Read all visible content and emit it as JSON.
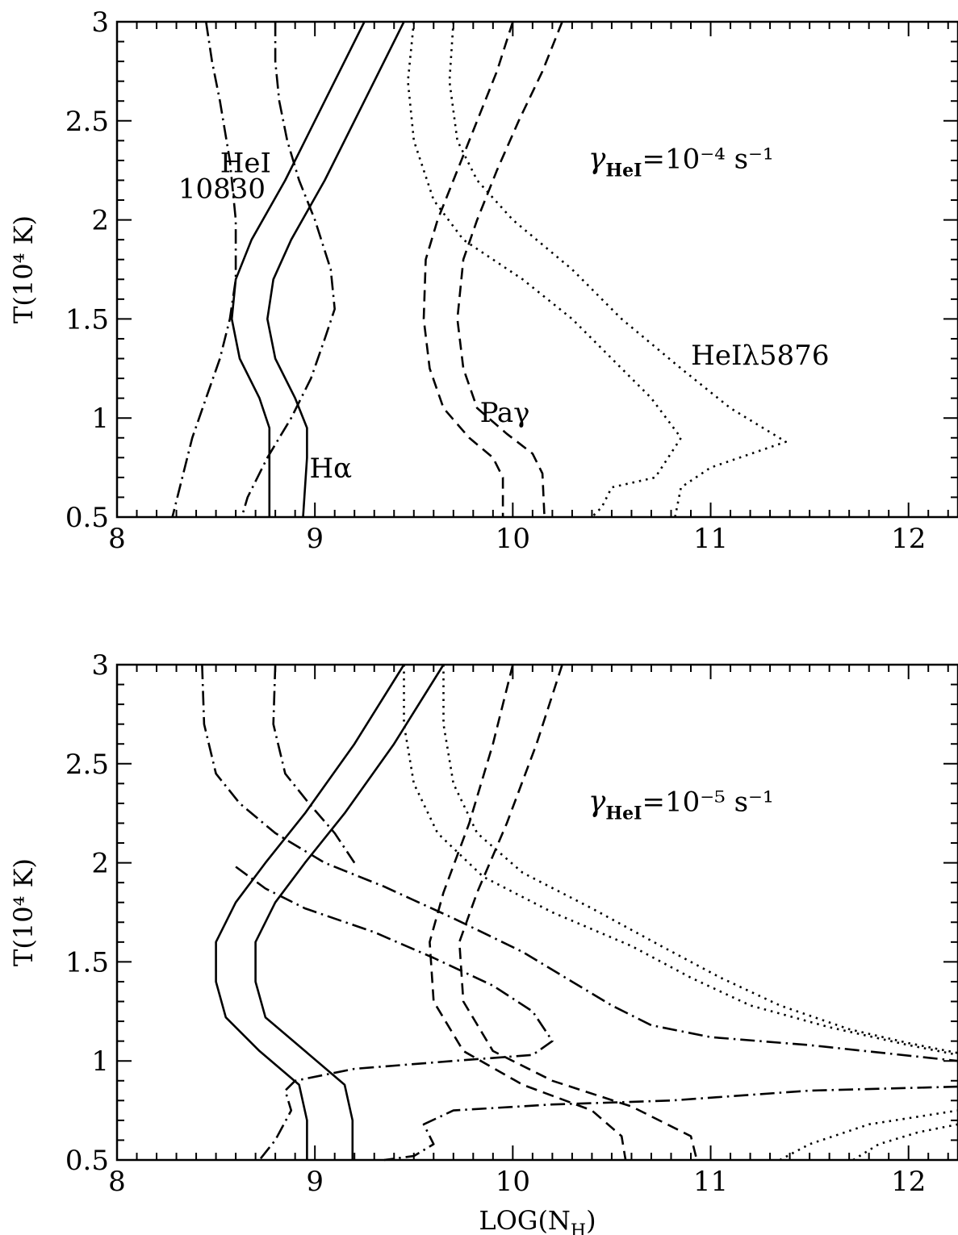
{
  "chart_data": [
    {
      "type": "line",
      "xlabel": "",
      "ylabel": "T(10⁴ K)",
      "xlim": [
        8,
        12.25
      ],
      "ylim": [
        0.5,
        3
      ],
      "x_ticks": [
        "8",
        "9",
        "10",
        "11",
        "12"
      ],
      "y_ticks": [
        "0.5",
        "1",
        "1.5",
        "2",
        "2.5",
        "3"
      ],
      "annotations": [
        {
          "id": "hei10830-a",
          "text": "HeI",
          "x": 8.65,
          "y": 2.24
        },
        {
          "id": "hei10830-b",
          "text": "10830",
          "x": 8.53,
          "y": 2.11
        },
        {
          "id": "halpha",
          "text": "Hα",
          "x": 9.08,
          "y": 0.7
        },
        {
          "id": "pagamma",
          "text": "Paγ",
          "x": 9.96,
          "y": 0.98
        },
        {
          "id": "hei5876",
          "text": "HeIλ5876",
          "x": 11.25,
          "y": 1.27
        },
        {
          "id": "gamma",
          "text": "γHeI=10⁻⁴ s⁻¹",
          "x": 10.85,
          "y": 2.26
        }
      ],
      "series": [
        {
          "style": "dash-dot",
          "points": [
            [
              8.45,
              3
            ],
            [
              8.48,
              2.8
            ],
            [
              8.52,
              2.6
            ],
            [
              8.57,
              2.3
            ],
            [
              8.6,
              2.0
            ],
            [
              8.6,
              1.7
            ],
            [
              8.57,
              1.5
            ],
            [
              8.52,
              1.3
            ],
            [
              8.45,
              1.1
            ],
            [
              8.38,
              0.9
            ],
            [
              8.33,
              0.7
            ],
            [
              8.28,
              0.5
            ]
          ]
        },
        {
          "style": "dash-dot",
          "points": [
            [
              8.8,
              3
            ],
            [
              8.8,
              2.8
            ],
            [
              8.82,
              2.6
            ],
            [
              8.86,
              2.4
            ],
            [
              8.92,
              2.2
            ],
            [
              9.0,
              2.0
            ],
            [
              9.08,
              1.75
            ],
            [
              9.1,
              1.55
            ],
            [
              9.05,
              1.4
            ],
            [
              8.98,
              1.2
            ],
            [
              8.88,
              1.0
            ],
            [
              8.76,
              0.8
            ],
            [
              8.66,
              0.6
            ],
            [
              8.63,
              0.5
            ]
          ]
        },
        {
          "style": "solid",
          "points": [
            [
              9.25,
              3
            ],
            [
              9.05,
              2.6
            ],
            [
              8.85,
              2.2
            ],
            [
              8.68,
              1.9
            ],
            [
              8.6,
              1.7
            ],
            [
              8.58,
              1.5
            ],
            [
              8.62,
              1.3
            ],
            [
              8.72,
              1.1
            ],
            [
              8.77,
              0.95
            ],
            [
              8.77,
              0.8
            ],
            [
              8.77,
              0.5
            ]
          ]
        },
        {
          "style": "solid",
          "points": [
            [
              9.45,
              3
            ],
            [
              9.25,
              2.6
            ],
            [
              9.05,
              2.2
            ],
            [
              8.88,
              1.9
            ],
            [
              8.79,
              1.7
            ],
            [
              8.76,
              1.5
            ],
            [
              8.8,
              1.3
            ],
            [
              8.9,
              1.1
            ],
            [
              8.96,
              0.95
            ],
            [
              8.96,
              0.8
            ],
            [
              8.94,
              0.5
            ]
          ]
        },
        {
          "style": "dotted",
          "points": [
            [
              9.5,
              3
            ],
            [
              9.47,
              2.7
            ],
            [
              9.5,
              2.4
            ],
            [
              9.6,
              2.1
            ],
            [
              9.75,
              1.9
            ],
            [
              10.05,
              1.7
            ],
            [
              10.3,
              1.5
            ],
            [
              10.5,
              1.3
            ],
            [
              10.7,
              1.1
            ],
            [
              10.85,
              0.9
            ],
            [
              10.72,
              0.7
            ],
            [
              10.5,
              0.65
            ],
            [
              10.45,
              0.55
            ],
            [
              10.4,
              0.5
            ]
          ]
        },
        {
          "style": "dotted",
          "points": [
            [
              9.7,
              3
            ],
            [
              9.68,
              2.7
            ],
            [
              9.72,
              2.4
            ],
            [
              9.82,
              2.2
            ],
            [
              10.0,
              2.0
            ],
            [
              10.3,
              1.75
            ],
            [
              10.55,
              1.5
            ],
            [
              10.85,
              1.25
            ],
            [
              11.1,
              1.05
            ],
            [
              11.38,
              0.88
            ],
            [
              11.0,
              0.75
            ],
            [
              10.85,
              0.65
            ],
            [
              10.82,
              0.5
            ]
          ]
        },
        {
          "style": "dashed",
          "points": [
            [
              10.0,
              3
            ],
            [
              9.92,
              2.75
            ],
            [
              9.82,
              2.5
            ],
            [
              9.72,
              2.25
            ],
            [
              9.62,
              2.0
            ],
            [
              9.56,
              1.8
            ],
            [
              9.55,
              1.5
            ],
            [
              9.58,
              1.25
            ],
            [
              9.65,
              1.05
            ],
            [
              9.78,
              0.9
            ],
            [
              9.9,
              0.8
            ],
            [
              9.95,
              0.7
            ],
            [
              9.95,
              0.5
            ]
          ]
        },
        {
          "style": "dashed",
          "points": [
            [
              10.25,
              3
            ],
            [
              10.15,
              2.75
            ],
            [
              10.03,
              2.5
            ],
            [
              9.92,
              2.25
            ],
            [
              9.82,
              2.0
            ],
            [
              9.75,
              1.8
            ],
            [
              9.72,
              1.5
            ],
            [
              9.75,
              1.25
            ],
            [
              9.82,
              1.05
            ],
            [
              9.97,
              0.92
            ],
            [
              10.1,
              0.82
            ],
            [
              10.15,
              0.72
            ],
            [
              10.16,
              0.5
            ]
          ]
        }
      ]
    },
    {
      "type": "line",
      "xlabel": "LOG(N_H)",
      "ylabel": "T(10⁴ K)",
      "xlim": [
        8,
        12.25
      ],
      "ylim": [
        0.5,
        3
      ],
      "x_ticks": [
        "8",
        "9",
        "10",
        "11",
        "12"
      ],
      "y_ticks": [
        "0.5",
        "1",
        "1.5",
        "2",
        "2.5",
        "3"
      ],
      "annotations": [
        {
          "id": "gamma",
          "text": "γHeI=10⁻⁵ s⁻¹",
          "x": 10.85,
          "y": 2.26
        }
      ],
      "series": [
        {
          "style": "dash-dot",
          "points": [
            [
              8.43,
              3
            ],
            [
              8.44,
              2.7
            ],
            [
              8.5,
              2.45
            ],
            [
              8.62,
              2.3
            ],
            [
              8.8,
              2.15
            ],
            [
              9.05,
              2.0
            ],
            [
              9.35,
              1.88
            ],
            [
              9.7,
              1.72
            ],
            [
              10.05,
              1.55
            ],
            [
              10.3,
              1.4
            ],
            [
              10.5,
              1.28
            ],
            [
              10.7,
              1.18
            ],
            [
              11.0,
              1.12
            ],
            [
              11.5,
              1.08
            ],
            [
              12.25,
              1.0
            ]
          ]
        },
        {
          "style": "dash-dot",
          "points": [
            [
              8.8,
              3
            ],
            [
              8.79,
              2.7
            ],
            [
              8.85,
              2.45
            ],
            [
              8.97,
              2.3
            ],
            [
              9.1,
              2.15
            ],
            [
              9.2,
              2.0
            ]
          ]
        },
        {
          "style": "dash-dot",
          "points": [
            [
              8.6,
              1.98
            ],
            [
              8.75,
              1.87
            ],
            [
              8.95,
              1.77
            ],
            [
              9.3,
              1.65
            ],
            [
              9.6,
              1.52
            ],
            [
              9.9,
              1.38
            ],
            [
              10.1,
              1.25
            ],
            [
              10.2,
              1.1
            ],
            [
              10.1,
              1.03
            ],
            [
              9.7,
              1.0
            ],
            [
              9.2,
              0.96
            ],
            [
              8.9,
              0.9
            ],
            [
              8.85,
              0.85
            ],
            [
              8.88,
              0.75
            ],
            [
              8.8,
              0.6
            ],
            [
              8.72,
              0.5
            ]
          ]
        },
        {
          "style": "dash-dot",
          "points": [
            [
              12.25,
              0.87
            ],
            [
              11.5,
              0.85
            ],
            [
              10.8,
              0.8
            ],
            [
              10.2,
              0.78
            ],
            [
              9.7,
              0.75
            ],
            [
              9.55,
              0.68
            ],
            [
              9.6,
              0.58
            ],
            [
              9.5,
              0.52
            ],
            [
              9.35,
              0.5
            ]
          ]
        },
        {
          "style": "solid",
          "points": [
            [
              9.45,
              3
            ],
            [
              9.2,
              2.6
            ],
            [
              8.95,
              2.25
            ],
            [
              8.75,
              2.0
            ],
            [
              8.6,
              1.8
            ],
            [
              8.5,
              1.6
            ],
            [
              8.5,
              1.4
            ],
            [
              8.55,
              1.22
            ],
            [
              8.72,
              1.05
            ],
            [
              8.92,
              0.88
            ],
            [
              8.96,
              0.7
            ],
            [
              8.96,
              0.5
            ]
          ]
        },
        {
          "style": "solid",
          "points": [
            [
              9.65,
              3
            ],
            [
              9.4,
              2.6
            ],
            [
              9.15,
              2.25
            ],
            [
              8.95,
              2.0
            ],
            [
              8.8,
              1.8
            ],
            [
              8.7,
              1.6
            ],
            [
              8.7,
              1.4
            ],
            [
              8.75,
              1.22
            ],
            [
              8.95,
              1.05
            ],
            [
              9.15,
              0.88
            ],
            [
              9.19,
              0.7
            ],
            [
              9.19,
              0.5
            ]
          ]
        },
        {
          "style": "dotted",
          "points": [
            [
              9.45,
              3
            ],
            [
              9.45,
              2.7
            ],
            [
              9.5,
              2.4
            ],
            [
              9.62,
              2.15
            ],
            [
              9.85,
              1.93
            ],
            [
              10.2,
              1.75
            ],
            [
              10.6,
              1.58
            ],
            [
              10.9,
              1.42
            ],
            [
              11.2,
              1.28
            ],
            [
              11.6,
              1.17
            ],
            [
              12.0,
              1.08
            ],
            [
              12.25,
              1.03
            ]
          ]
        },
        {
          "style": "dotted",
          "points": [
            [
              9.65,
              3
            ],
            [
              9.65,
              2.7
            ],
            [
              9.7,
              2.4
            ],
            [
              9.82,
              2.15
            ],
            [
              10.05,
              1.95
            ],
            [
              10.4,
              1.77
            ],
            [
              10.75,
              1.58
            ],
            [
              11.05,
              1.42
            ],
            [
              11.35,
              1.28
            ],
            [
              11.7,
              1.16
            ],
            [
              12.0,
              1.09
            ],
            [
              12.25,
              1.04
            ]
          ]
        },
        {
          "style": "dotted",
          "points": [
            [
              11.35,
              0.5
            ],
            [
              11.5,
              0.58
            ],
            [
              11.8,
              0.68
            ],
            [
              12.25,
              0.75
            ]
          ]
        },
        {
          "style": "dotted",
          "points": [
            [
              11.72,
              0.5
            ],
            [
              11.85,
              0.58
            ],
            [
              12.05,
              0.64
            ],
            [
              12.25,
              0.68
            ]
          ]
        },
        {
          "style": "dashed",
          "points": [
            [
              10.0,
              3
            ],
            [
              9.9,
              2.6
            ],
            [
              9.78,
              2.2
            ],
            [
              9.65,
              1.85
            ],
            [
              9.58,
              1.6
            ],
            [
              9.6,
              1.3
            ],
            [
              9.75,
              1.05
            ],
            [
              10.05,
              0.88
            ],
            [
              10.4,
              0.75
            ],
            [
              10.55,
              0.62
            ],
            [
              10.57,
              0.5
            ]
          ]
        },
        {
          "style": "dashed",
          "points": [
            [
              10.25,
              3
            ],
            [
              10.12,
              2.6
            ],
            [
              9.97,
              2.2
            ],
            [
              9.82,
              1.85
            ],
            [
              9.73,
              1.6
            ],
            [
              9.75,
              1.3
            ],
            [
              9.9,
              1.05
            ],
            [
              10.2,
              0.9
            ],
            [
              10.6,
              0.77
            ],
            [
              10.9,
              0.62
            ],
            [
              10.93,
              0.5
            ]
          ]
        }
      ]
    }
  ]
}
